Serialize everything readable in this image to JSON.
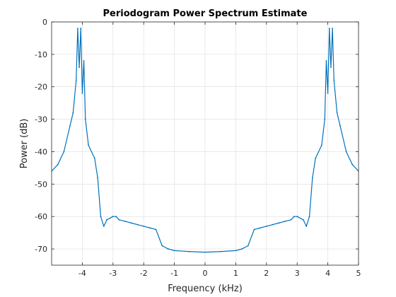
{
  "chart_data": {
    "type": "line",
    "title": "Periodogram Power Spectrum Estimate",
    "xlabel": "Frequency (kHz)",
    "ylabel": "Power (dB)",
    "xlim": [
      -5,
      5
    ],
    "ylim": [
      -75,
      0
    ],
    "xticks": [
      -4,
      -3,
      -2,
      -1,
      0,
      1,
      2,
      3,
      4,
      5
    ],
    "yticks": [
      0,
      -10,
      -20,
      -30,
      -40,
      -50,
      -60,
      -70
    ],
    "grid": true,
    "line_color": "#0072bd",
    "series": [
      {
        "name": "",
        "x": [
          -5.0,
          -4.8,
          -4.6,
          -4.4,
          -4.3,
          -4.2,
          -4.15,
          -4.1,
          -4.05,
          -4.0,
          -3.95,
          -3.9,
          -3.8,
          -3.6,
          -3.5,
          -3.4,
          -3.3,
          -3.2,
          -3.0,
          -2.9,
          -2.8,
          -2.6,
          -2.4,
          -2.2,
          -2.0,
          -1.8,
          -1.6,
          -1.4,
          -1.2,
          -1.0,
          -0.5,
          0.0,
          0.5,
          1.0,
          1.2,
          1.4,
          1.6,
          1.8,
          2.0,
          2.2,
          2.4,
          2.6,
          2.8,
          2.9,
          3.0,
          3.2,
          3.3,
          3.4,
          3.5,
          3.6,
          3.8,
          3.9,
          3.95,
          4.0,
          4.05,
          4.1,
          4.15,
          4.2,
          4.3,
          4.4,
          4.6,
          4.8,
          5.0
        ],
        "y": [
          -46,
          -44,
          -40,
          -32,
          -28,
          -18,
          -2,
          -14,
          -2,
          -22,
          -12,
          -30,
          -38,
          -42,
          -48,
          -60,
          -63,
          -61,
          -60,
          -60,
          -61,
          -61.5,
          -62,
          -62.5,
          -63,
          -63.5,
          -64,
          -69,
          -70,
          -70.5,
          -70.8,
          -71,
          -70.8,
          -70.5,
          -70,
          -69,
          -64,
          -63.5,
          -63,
          -62.5,
          -62,
          -61.5,
          -61,
          -60,
          -60,
          -61,
          -63,
          -60,
          -48,
          -42,
          -38,
          -30,
          -12,
          -22,
          -2,
          -14,
          -2,
          -18,
          -28,
          -32,
          -40,
          -44,
          -46
        ]
      }
    ]
  }
}
